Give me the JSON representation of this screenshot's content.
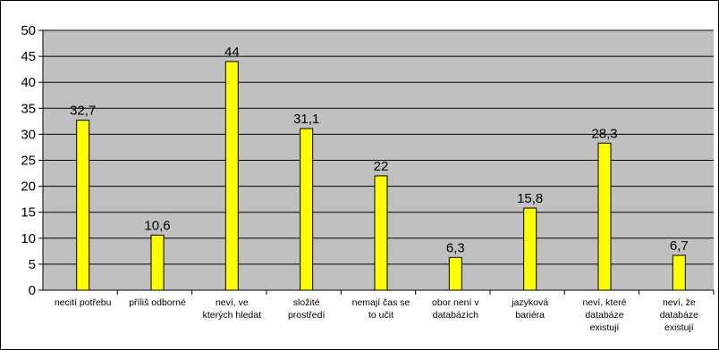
{
  "chart_data": {
    "type": "bar",
    "title": "",
    "xlabel": "",
    "ylabel": "",
    "ylim": [
      0,
      50
    ],
    "ytick_step": 5,
    "grid": "horizontal",
    "legend": "none",
    "colors": {
      "plot_background": "#c0c0c0",
      "bar_fill": "#ffff00",
      "bar_stroke": "#000000",
      "gridline": "#000000"
    },
    "categories": [
      [
        "necití potřebu"
      ],
      [
        "příliš odborné"
      ],
      [
        "neví, ve",
        "kterých hledat"
      ],
      [
        "složité",
        "prostředí"
      ],
      [
        "nemají čas se",
        "to učit"
      ],
      [
        "obor není v",
        "databázích"
      ],
      [
        "jazyková",
        "bariéra"
      ],
      [
        "neví, které",
        "databáze",
        "existují"
      ],
      [
        "neví, že",
        "databáze",
        "existují"
      ]
    ],
    "values": [
      32.7,
      10.6,
      44,
      31.1,
      22,
      6.3,
      15.8,
      28.3,
      6.7
    ],
    "data_labels": [
      "32,7",
      "10,6",
      "44",
      "31,1",
      "22",
      "6,3",
      "15,8",
      "28,3",
      "6,7"
    ]
  }
}
